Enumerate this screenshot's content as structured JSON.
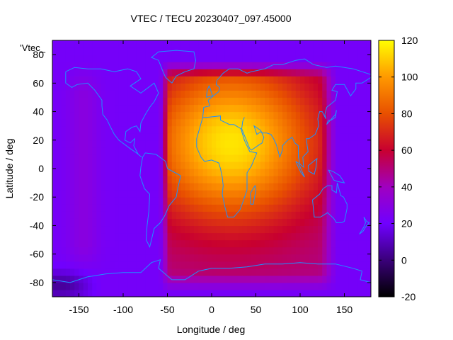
{
  "chart_data": {
    "type": "heatmap",
    "title": "VTEC / TECU 20230407_097.45000",
    "legend_key": "'Vtec_",
    "xlabel": "Longitude / deg",
    "ylabel": "Latitude / deg",
    "xlim": [
      -180,
      180
    ],
    "ylim": [
      -90,
      90
    ],
    "xticks": [
      -150,
      -100,
      -50,
      0,
      50,
      100,
      150
    ],
    "yticks": [
      -80,
      -60,
      -40,
      -20,
      0,
      20,
      40,
      60,
      80
    ],
    "colorbar": {
      "range": [
        -20,
        120
      ],
      "ticks": [
        -20,
        0,
        20,
        40,
        60,
        80,
        100,
        120
      ],
      "palette": [
        "#000000",
        "#3a007a",
        "#7000ff",
        "#a000c0",
        "#c80030",
        "#e85000",
        "#ff9900",
        "#ffff00"
      ]
    },
    "grid_resolution": {
      "lon_step": 5,
      "lat_step": 5
    },
    "model": {
      "background_tec": 22,
      "peak_tec": 115,
      "peak_center": {
        "lon": 22,
        "lat": 18
      },
      "dayside_east_edge_lon": 145,
      "dayside_west_edge_lon": -52,
      "southern_edge_lat": -83,
      "crest_peak_tec": 30,
      "crest_lon": -145,
      "polar_low_tec": 5
    },
    "overlay": "coastlines"
  }
}
